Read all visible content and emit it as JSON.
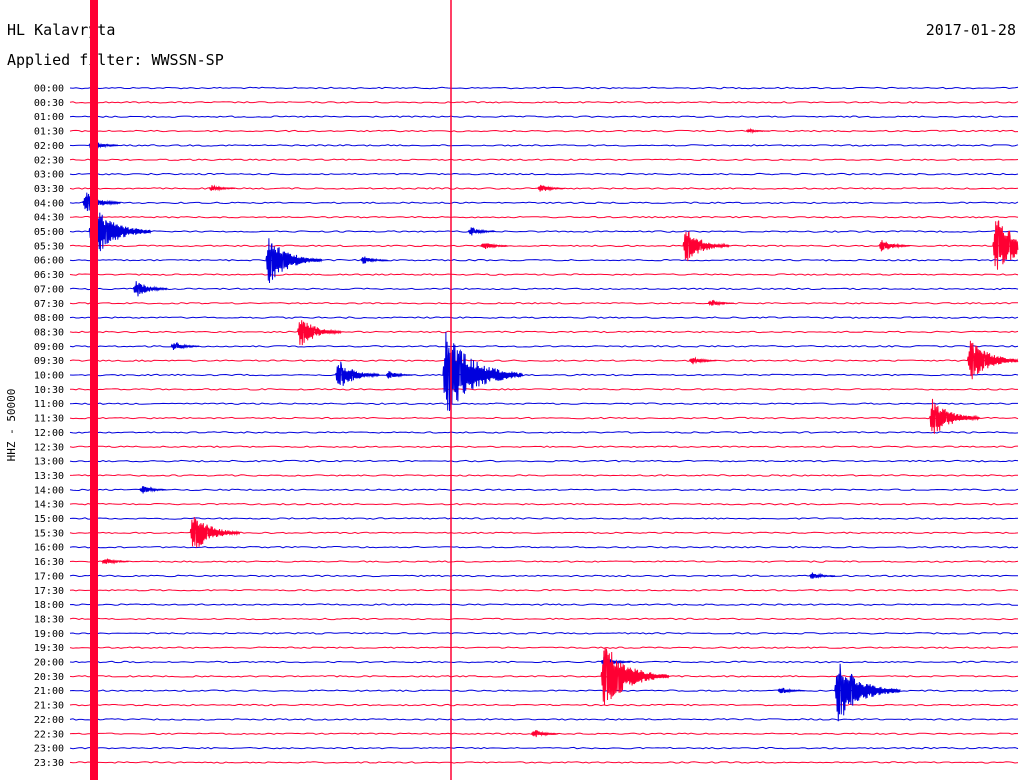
{
  "header": {
    "station": "HL Kalavryta",
    "filter": "Applied filter: WWSSN-SP",
    "date": "2017-01-28"
  },
  "chart_data": {
    "type": "line",
    "subtype": "helicorder",
    "ylabel": "HHZ - 50000",
    "tick_labels": [
      "00:00",
      "00:30",
      "01:00",
      "01:30",
      "02:00",
      "02:30",
      "03:00",
      "03:30",
      "04:00",
      "04:30",
      "05:00",
      "05:30",
      "06:00",
      "06:30",
      "07:00",
      "07:30",
      "08:00",
      "08:30",
      "09:00",
      "09:30",
      "10:00",
      "10:30",
      "11:00",
      "11:30",
      "12:00",
      "12:30",
      "13:00",
      "13:30",
      "14:00",
      "14:30",
      "15:00",
      "15:30",
      "16:00",
      "16:30",
      "17:00",
      "17:30",
      "18:00",
      "18:30",
      "19:00",
      "19:30",
      "20:00",
      "20:30",
      "21:00",
      "21:30",
      "22:00",
      "22:30",
      "23:00",
      "23:30"
    ],
    "trace_minutes": 15,
    "colors": [
      "#0000dd",
      "#ff0033"
    ],
    "grid": false,
    "events": [
      {
        "trace": 3,
        "minute": 10.7,
        "amp": 0.3
      },
      {
        "trace": 4,
        "minute": 0.3,
        "amp": 0.8
      },
      {
        "trace": 7,
        "minute": 2.2,
        "amp": 0.5
      },
      {
        "trace": 7,
        "minute": 7.4,
        "amp": 0.6
      },
      {
        "trace": 8,
        "minute": 0.2,
        "amp": 1.5
      },
      {
        "trace": 10,
        "minute": 6.3,
        "amp": 0.6
      },
      {
        "trace": 10,
        "minute": 0.3,
        "amp": 3.5
      },
      {
        "trace": 11,
        "minute": 6.5,
        "amp": 0.6
      },
      {
        "trace": 11,
        "minute": 9.7,
        "amp": 2.2
      },
      {
        "trace": 11,
        "minute": 12.8,
        "amp": 0.9
      },
      {
        "trace": 11,
        "minute": 14.6,
        "amp": 3.5
      },
      {
        "trace": 12,
        "minute": 3.1,
        "amp": 3.0
      },
      {
        "trace": 12,
        "minute": 4.6,
        "amp": 0.6
      },
      {
        "trace": 14,
        "minute": 1.0,
        "amp": 1.2
      },
      {
        "trace": 15,
        "minute": 10.1,
        "amp": 0.5
      },
      {
        "trace": 17,
        "minute": 3.6,
        "amp": 2.0
      },
      {
        "trace": 18,
        "minute": 1.6,
        "amp": 0.7
      },
      {
        "trace": 19,
        "minute": 9.8,
        "amp": 0.6
      },
      {
        "trace": 19,
        "minute": 14.2,
        "amp": 2.8
      },
      {
        "trace": 20,
        "minute": 4.2,
        "amp": 2.0
      },
      {
        "trace": 20,
        "minute": 5.0,
        "amp": 0.6
      },
      {
        "trace": 20,
        "minute": 5.9,
        "amp": 5.0
      },
      {
        "trace": 23,
        "minute": 13.6,
        "amp": 2.5
      },
      {
        "trace": 28,
        "minute": 1.1,
        "amp": 0.6
      },
      {
        "trace": 31,
        "minute": 1.9,
        "amp": 2.5
      },
      {
        "trace": 33,
        "minute": 0.5,
        "amp": 0.6
      },
      {
        "trace": 34,
        "minute": 11.7,
        "amp": 0.5
      },
      {
        "trace": 40,
        "minute": 8.4,
        "amp": 0.8
      },
      {
        "trace": 41,
        "minute": 8.4,
        "amp": 4.0
      },
      {
        "trace": 42,
        "minute": 11.2,
        "amp": 0.6
      },
      {
        "trace": 42,
        "minute": 12.1,
        "amp": 3.8
      },
      {
        "trace": 45,
        "minute": 7.3,
        "amp": 0.6
      }
    ]
  }
}
